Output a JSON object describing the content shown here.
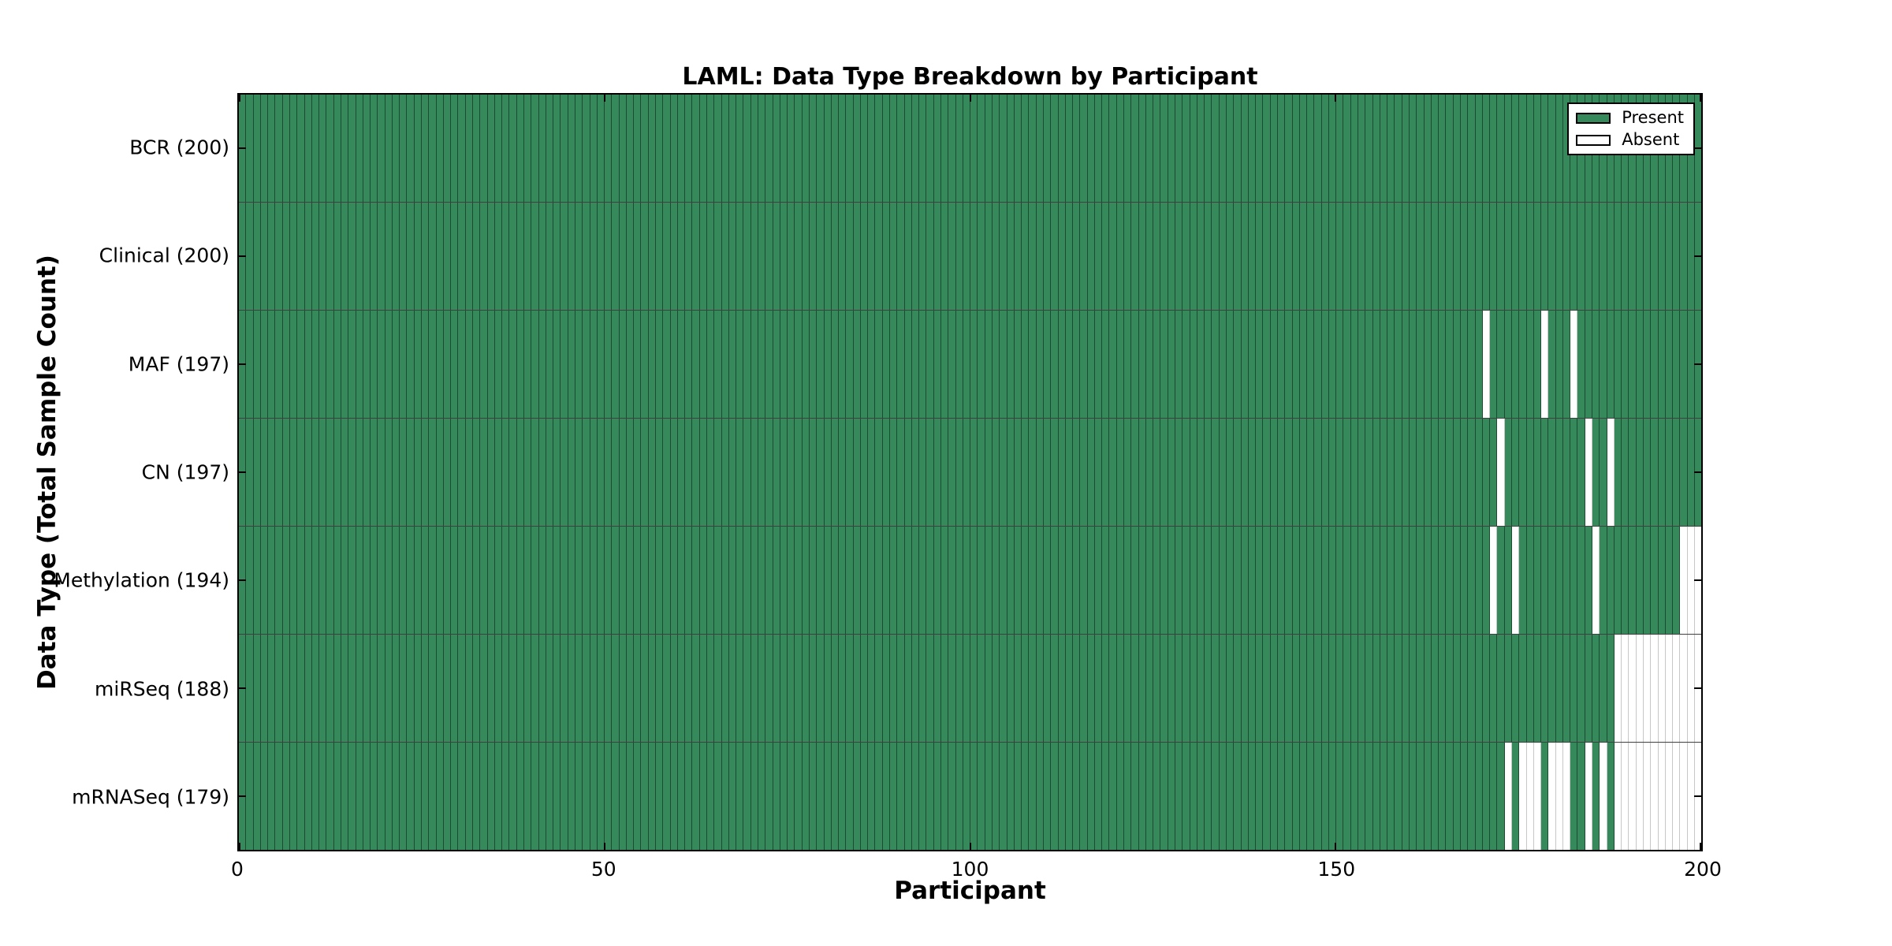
{
  "title": "LAML: Data Type Breakdown by Participant",
  "axes": {
    "xlabel": "Participant",
    "ylabel": "Data Type (Total Sample Count)"
  },
  "legend": {
    "present_label": "Present",
    "absent_label": "Absent"
  },
  "chart_data": {
    "type": "heatmap",
    "title": "LAML: Data Type Breakdown by Participant",
    "xlabel": "Participant",
    "ylabel": "Data Type (Total Sample Count)",
    "n_participants": 200,
    "xlim": [
      0,
      200
    ],
    "x_ticks": [
      0,
      50,
      100,
      150,
      200
    ],
    "grid": false,
    "legend_position": "upper right",
    "legend_entries": [
      {
        "label": "Present",
        "color": "#35895b"
      },
      {
        "label": "Absent",
        "color": "#ffffff"
      }
    ],
    "colors": {
      "present_fill": "#35895b",
      "absent_fill": "#ffffff",
      "cell_edge": "#1d4d33",
      "spine": "#000000"
    },
    "rows": [
      {
        "name": "BCR",
        "label": "BCR (200)",
        "present_count": 200,
        "absent_participants": []
      },
      {
        "name": "Clinical",
        "label": "Clinical (200)",
        "present_count": 200,
        "absent_participants": []
      },
      {
        "name": "MAF",
        "label": "MAF (197)",
        "present_count": 197,
        "absent_participants": [
          170,
          178,
          182
        ]
      },
      {
        "name": "CN",
        "label": "CN (197)",
        "present_count": 197,
        "absent_participants": [
          172,
          184,
          187
        ]
      },
      {
        "name": "Methylation",
        "label": "Methylation (194)",
        "present_count": 194,
        "absent_participants": [
          171,
          174,
          185,
          197,
          198,
          199
        ]
      },
      {
        "name": "miRSeq",
        "label": "miRSeq (188)",
        "present_count": 188,
        "absent_participants": [
          188,
          189,
          190,
          191,
          192,
          193,
          194,
          195,
          196,
          197,
          198,
          199
        ]
      },
      {
        "name": "mRNASeq",
        "label": "mRNASeq (179)",
        "present_count": 179,
        "absent_participants": [
          173,
          175,
          176,
          177,
          179,
          180,
          181,
          184,
          186,
          188,
          189,
          190,
          191,
          192,
          193,
          194,
          195,
          196,
          197,
          198,
          199
        ]
      }
    ]
  }
}
